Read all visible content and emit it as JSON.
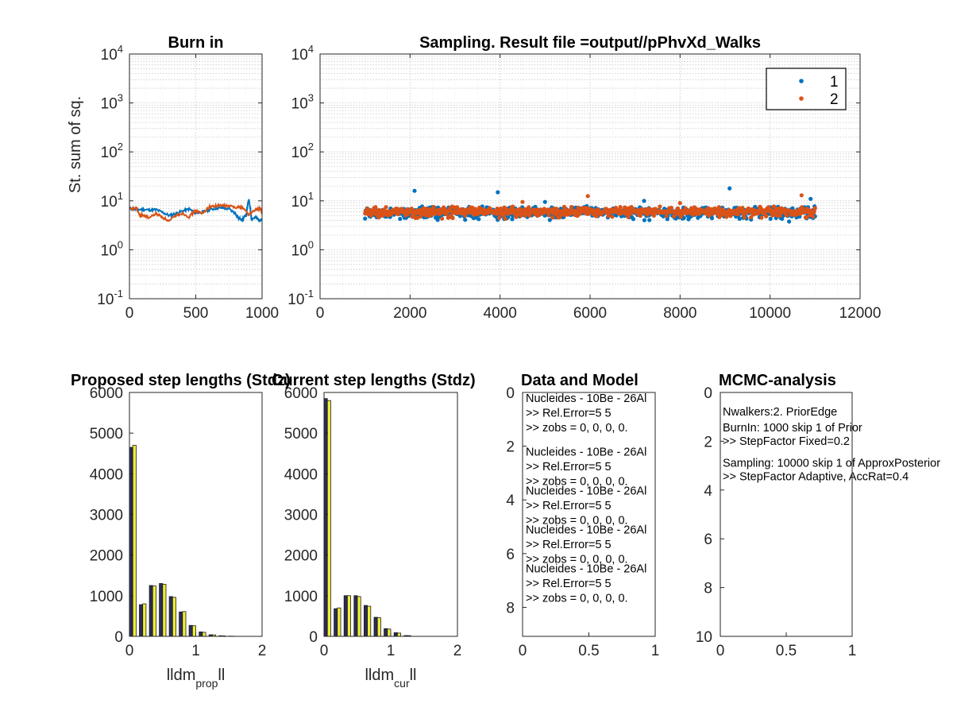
{
  "colors": {
    "walker1": "#0072BD",
    "walker2": "#D95319",
    "bar_dark": "#2B2B5A",
    "bar_yellow": "#EEEE3A",
    "grid": "#c8c8c8",
    "axis": "#262626"
  },
  "chart_data": [
    {
      "id": "burnin",
      "type": "line",
      "title": "Burn in",
      "ylabel": "St. sum of sq.",
      "xlim": [
        0,
        1000
      ],
      "ylim": [
        0.1,
        10000
      ],
      "yscale": "log",
      "grid": true,
      "xticks": [
        "0",
        "500",
        "1000"
      ],
      "yticks": [
        {
          "base": "10",
          "exp": "-1"
        },
        {
          "base": "10",
          "exp": "0"
        },
        {
          "base": "10",
          "exp": "1"
        },
        {
          "base": "10",
          "exp": "2"
        },
        {
          "base": "10",
          "exp": "3"
        },
        {
          "base": "10",
          "exp": "4"
        }
      ],
      "series": [
        {
          "color_key": "walker1",
          "x": [
            0,
            50,
            100,
            150,
            200,
            250,
            300,
            350,
            400,
            450,
            500,
            550,
            600,
            650,
            700,
            750,
            800,
            820,
            850,
            880,
            900,
            920,
            950,
            980,
            1000
          ],
          "y": [
            7.0,
            6.6,
            6.7,
            6.5,
            6.6,
            5.8,
            5.0,
            5.5,
            6.2,
            6.8,
            5.6,
            5.9,
            6.6,
            7.0,
            7.2,
            6.8,
            5.5,
            4.5,
            4.2,
            5.0,
            10.5,
            4.2,
            4.6,
            4.0,
            4.3
          ]
        },
        {
          "color_key": "walker2",
          "x": [
            0,
            50,
            80,
            100,
            150,
            200,
            250,
            300,
            350,
            400,
            450,
            500,
            550,
            600,
            650,
            700,
            750,
            800,
            850,
            900,
            950,
            980,
            1000
          ],
          "y": [
            6.5,
            7.2,
            4.8,
            5.2,
            4.5,
            5.5,
            4.6,
            3.8,
            5.0,
            5.6,
            4.7,
            6.3,
            5.4,
            7.5,
            7.9,
            8.0,
            7.8,
            7.5,
            7.4,
            5.2,
            6.5,
            7.0,
            5.8
          ]
        }
      ]
    },
    {
      "id": "sampling",
      "type": "scatter",
      "title": "Sampling. Result file =output//pPhvXd_Walks",
      "xlim": [
        0,
        12000
      ],
      "ylim": [
        0.1,
        10000
      ],
      "yscale": "log",
      "grid": true,
      "legend": "top-right",
      "xticks": [
        "0",
        "2000",
        "4000",
        "6000",
        "8000",
        "10000",
        "12000"
      ],
      "yticks": [
        {
          "base": "10",
          "exp": "-1"
        },
        {
          "base": "10",
          "exp": "0"
        },
        {
          "base": "10",
          "exp": "1"
        },
        {
          "base": "10",
          "exp": "2"
        },
        {
          "base": "10",
          "exp": "3"
        },
        {
          "base": "10",
          "exp": "4"
        }
      ],
      "series": [
        {
          "name": "1",
          "color_key": "walker1",
          "x_range": [
            1000,
            11000
          ],
          "y_band": [
            4.0,
            7.5
          ],
          "outliers": [
            [
              2100,
              16
            ],
            [
              3950,
              15
            ],
            [
              9100,
              18
            ],
            [
              10900,
              11
            ],
            [
              5000,
              9.5
            ],
            [
              7200,
              10
            ]
          ]
        },
        {
          "name": "2",
          "color_key": "walker2",
          "x_range": [
            1000,
            11000
          ],
          "y_band": [
            4.5,
            7.5
          ],
          "outliers": [
            [
              5950,
              12.5
            ],
            [
              10700,
              13
            ],
            [
              4500,
              9.5
            ],
            [
              8000,
              9
            ]
          ]
        }
      ]
    },
    {
      "id": "hist_prop",
      "type": "bar",
      "title": "Proposed step lengths (Stdz)",
      "xlabel": {
        "main": "lldm",
        "sub": "prop",
        "suffix": "ll"
      },
      "xlim": [
        0,
        2
      ],
      "ylim": [
        0,
        6000
      ],
      "xticks": [
        "0",
        "1",
        "2"
      ],
      "yticks": [
        "0",
        "1000",
        "2000",
        "3000",
        "4000",
        "5000",
        "6000"
      ],
      "bin_centers": [
        0.05,
        0.2,
        0.35,
        0.5,
        0.65,
        0.8,
        0.95,
        1.1,
        1.25,
        1.4,
        1.55
      ],
      "series": [
        {
          "color_key": "bar_dark",
          "values": [
            4650,
            780,
            1250,
            1300,
            980,
            600,
            270,
            110,
            40,
            15,
            5
          ]
        },
        {
          "color_key": "bar_yellow",
          "values": [
            4700,
            800,
            1240,
            1280,
            960,
            610,
            260,
            100,
            35,
            12,
            4
          ]
        }
      ]
    },
    {
      "id": "hist_cur",
      "type": "bar",
      "title": "Current step lengths (Stdz)",
      "xlabel": {
        "main": "lldm",
        "sub": "cur",
        "suffix": "ll"
      },
      "xlim": [
        0,
        2
      ],
      "ylim": [
        0,
        6000
      ],
      "xticks": [
        "0",
        "1",
        "2"
      ],
      "yticks": [
        "0",
        "1000",
        "2000",
        "3000",
        "4000",
        "5000",
        "6000"
      ],
      "bin_centers": [
        0.05,
        0.2,
        0.35,
        0.5,
        0.65,
        0.8,
        0.95,
        1.1,
        1.25
      ],
      "series": [
        {
          "color_key": "bar_dark",
          "values": [
            5850,
            680,
            1000,
            1000,
            760,
            470,
            190,
            90,
            20
          ]
        },
        {
          "color_key": "bar_yellow",
          "values": [
            5800,
            700,
            1000,
            980,
            740,
            460,
            180,
            80,
            18
          ]
        }
      ]
    }
  ],
  "text_panels": [
    {
      "id": "data_model",
      "title": "Data and Model",
      "xticks": [
        "0",
        "0.5",
        "1"
      ],
      "yticks": [
        "0",
        "2",
        "4",
        "6",
        "8"
      ],
      "lines": [
        {
          "y": 0.35,
          "text": "Nucleides - 10Be - 26Al"
        },
        {
          "y": 0.9,
          "text": ">>     Rel.Error=5  5"
        },
        {
          "y": 1.45,
          "text": ">>     zobs = 0, 0, 0, 0."
        },
        {
          "y": 2.35,
          "text": "Nucleides - 10Be - 26Al"
        },
        {
          "y": 2.9,
          "text": ">>     Rel.Error=5  5"
        },
        {
          "y": 3.45,
          "text": ">>     zobs = 0, 0, 0, 0."
        },
        {
          "y": 3.8,
          "text": "Nucleides - 10Be - 26Al"
        },
        {
          "y": 4.35,
          "text": ">>     Rel.Error=5  5"
        },
        {
          "y": 4.9,
          "text": ">>     zobs = 0, 0, 0, 0."
        },
        {
          "y": 5.25,
          "text": "Nucleides - 10Be - 26Al"
        },
        {
          "y": 5.8,
          "text": ">>     Rel.Error=5  5"
        },
        {
          "y": 6.35,
          "text": ">>     zobs = 0, 0, 0, 0."
        },
        {
          "y": 6.7,
          "text": "Nucleides - 10Be - 26Al"
        },
        {
          "y": 7.25,
          "text": ">>     Rel.Error=5  5"
        },
        {
          "y": 7.8,
          "text": ">>     zobs = 0, 0, 0, 0."
        }
      ]
    },
    {
      "id": "mcmc",
      "title": "MCMC-analysis",
      "xticks": [
        "0",
        "0.5",
        "1"
      ],
      "yticks": [
        "0",
        "2",
        "4",
        "6",
        "8",
        "10"
      ],
      "lines": [
        {
          "y": 0.95,
          "text": "Nwalkers:2. PriorEdge"
        },
        {
          "y": 1.6,
          "text": "BurnIn: 1000 skip 1 of Prior"
        },
        {
          "y": 2.15,
          "text": ">>     StepFactor Fixed=0.2"
        },
        {
          "y": 3.05,
          "text": "Sampling: 10000 skip 1 of ApproxPosterior"
        },
        {
          "y": 3.6,
          "text": ">>     StepFactor Adaptive, AccRat=0.4"
        }
      ]
    }
  ]
}
